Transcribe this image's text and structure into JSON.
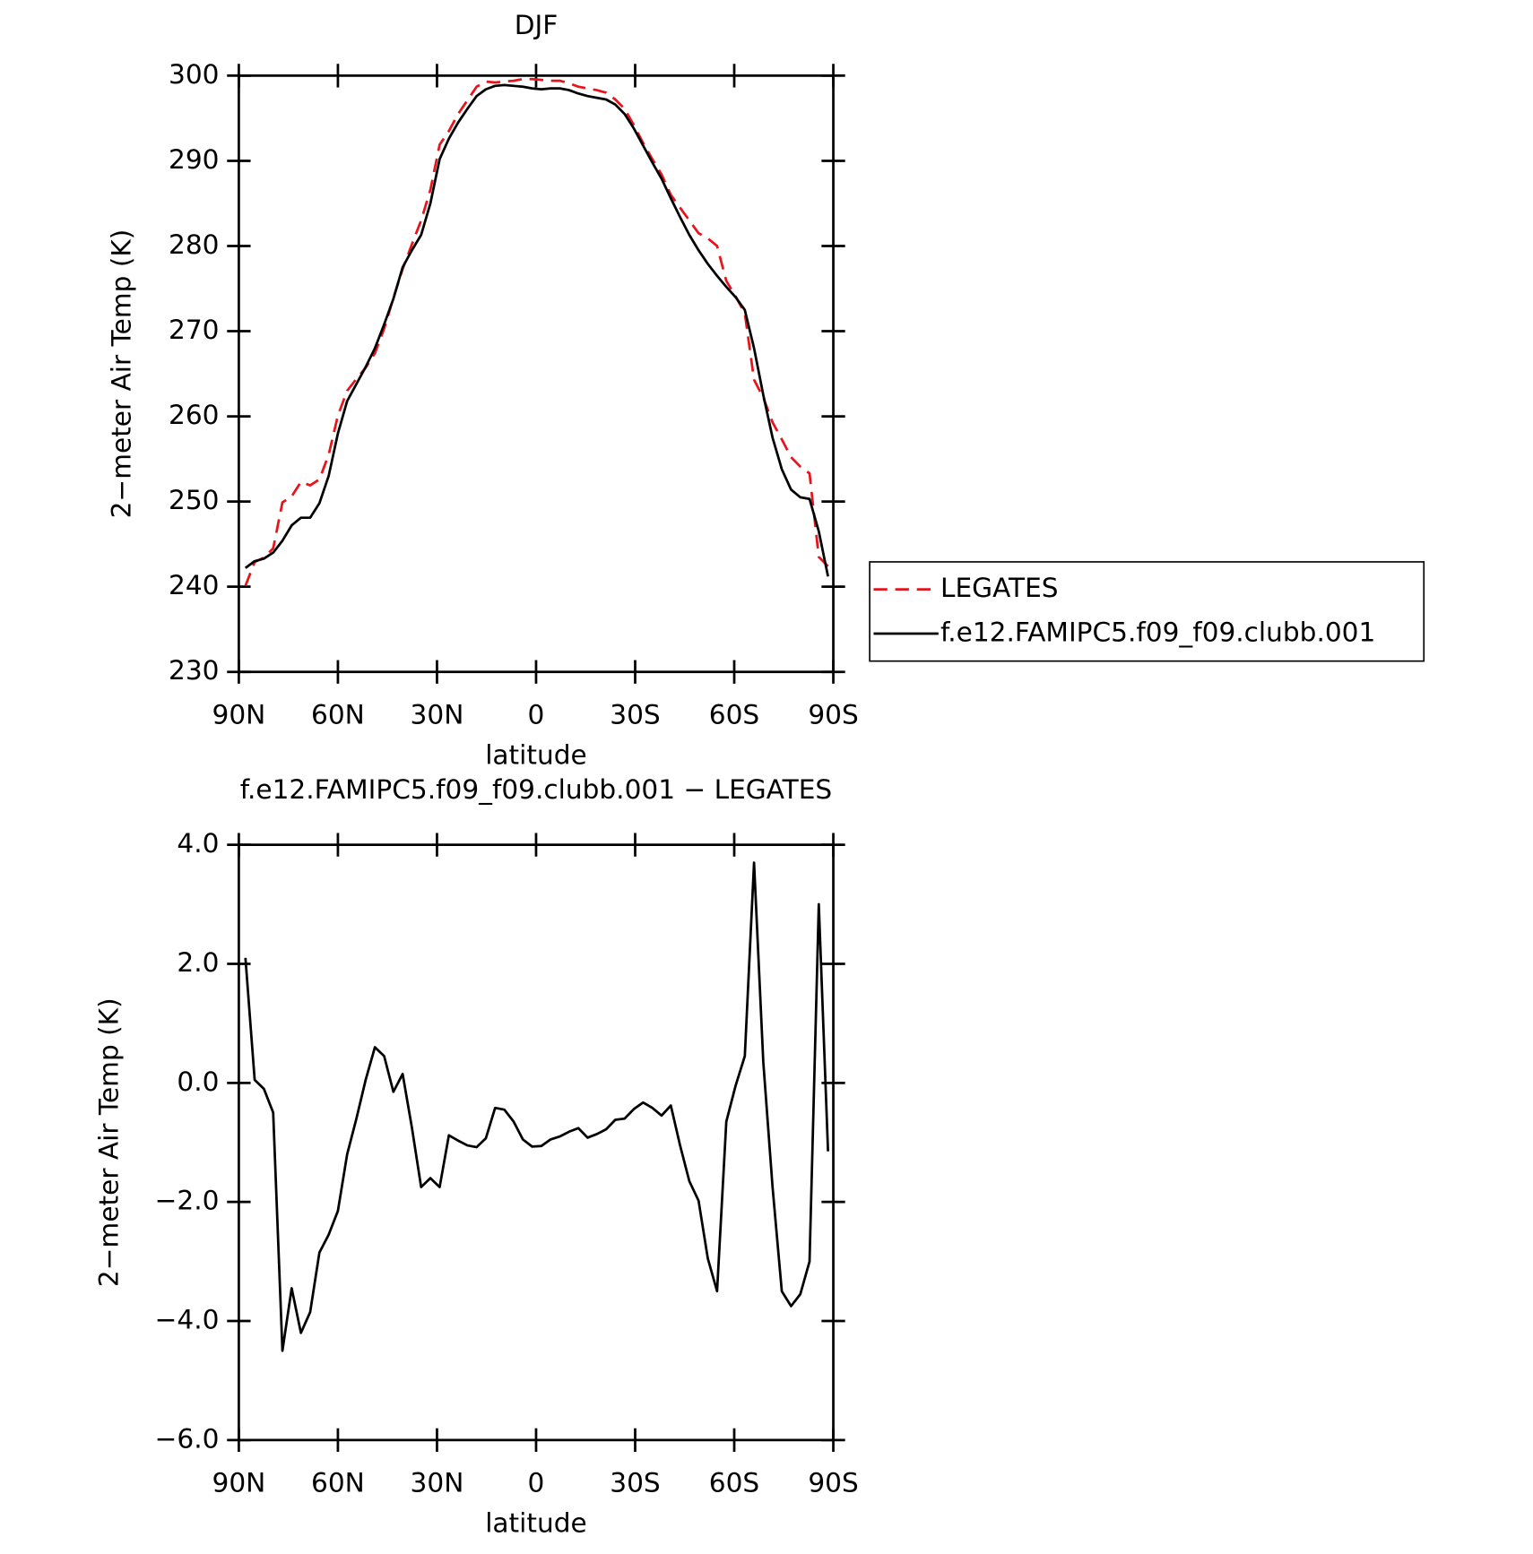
{
  "chart_data": [
    {
      "type": "line",
      "title": "DJF",
      "xlabel": "latitude",
      "ylabel": "2−meter Air Temp (K)",
      "x": [
        88,
        85.2,
        82.4,
        79.6,
        76.8,
        74,
        71.2,
        68.4,
        65.6,
        62.8,
        60,
        57.2,
        54.4,
        51.6,
        48.8,
        46,
        43.2,
        40.4,
        37.6,
        34.8,
        32,
        29.2,
        26.4,
        23.6,
        20.8,
        18,
        15.2,
        12.4,
        9.6,
        6.8,
        4,
        1.2,
        -1.6,
        -4.4,
        -7.2,
        -10,
        -12.8,
        -15.6,
        -18.4,
        -21.2,
        -24,
        -26.8,
        -29.6,
        -32.4,
        -35.2,
        -38,
        -40.8,
        -43.6,
        -46.4,
        -49.2,
        -52,
        -54.8,
        -57.6,
        -60.4,
        -63.2,
        -66,
        -68.8,
        -71.6,
        -74.4,
        -77.2,
        -80,
        -82.8,
        -85.6,
        -88.4
      ],
      "series": [
        {
          "name": "LEGATES",
          "color": "#e8141c",
          "dashed": true,
          "values": [
            240.1,
            242.9,
            243.4,
            244.5,
            249.9,
            250.6,
            252.3,
            251.9,
            252.6,
            255.5,
            260.1,
            263,
            264.4,
            265.7,
            267.4,
            270.3,
            273.9,
            277.3,
            280.2,
            283.0,
            286.6,
            291.9,
            293.5,
            295.5,
            297.1,
            298.7,
            299.3,
            299.2,
            299.3,
            299.4,
            299.6,
            299.6,
            299.5,
            299.4,
            299.4,
            299.1,
            298.7,
            298.5,
            298.3,
            298.0,
            297.2,
            296.1,
            294.2,
            292.1,
            290.2,
            288.4,
            286.0,
            284.5,
            283.0,
            281.5,
            280.9,
            280.0,
            275.9,
            274.1,
            272.1,
            264.3,
            262.2,
            259.3,
            257.3,
            255.2,
            254.1,
            253.3,
            243.5,
            242.4
          ]
        },
        {
          "name": "f.e12.FAMIPC5.f09_f09.clubb.001",
          "color": "#000000",
          "dashed": false,
          "values": [
            242.2,
            243,
            243.3,
            244,
            245.4,
            247.2,
            248.1,
            248.1,
            249.8,
            253,
            258,
            261.8,
            263.8,
            265.8,
            268,
            270.8,
            273.8,
            277.5,
            279.5,
            281.3,
            285,
            290.2,
            292.6,
            294.5,
            296.1,
            297.6,
            298.4,
            298.8,
            298.9,
            298.8,
            298.7,
            298.5,
            298.4,
            298.5,
            298.5,
            298.3,
            297.9,
            297.6,
            297.4,
            297.2,
            296.6,
            295.5,
            293.8,
            291.8,
            289.8,
            287.9,
            285.6,
            283.4,
            281.3,
            279.5,
            277.9,
            276.5,
            275.2,
            274,
            272.5,
            268,
            262.5,
            257.5,
            253.8,
            251.4,
            250.5,
            250.3,
            246.5,
            241.2
          ]
        }
      ],
      "xlim": [
        90,
        -90
      ],
      "xticks": [
        {
          "value": 90,
          "label": "90N"
        },
        {
          "value": 60,
          "label": "60N"
        },
        {
          "value": 30,
          "label": "30N"
        },
        0,
        {
          "value": -30,
          "label": "30S"
        },
        {
          "value": -60,
          "label": "60S"
        },
        {
          "value": -90,
          "label": "90S"
        }
      ],
      "ylim": [
        230,
        300
      ],
      "yticks": [
        230,
        240,
        250,
        260,
        270,
        280,
        290,
        300
      ],
      "legend": "right"
    },
    {
      "type": "line",
      "title": "f.e12.FAMIPC5.f09_f09.clubb.001 − LEGATES",
      "xlabel": "latitude",
      "ylabel": "2−meter Air Temp (K)",
      "x": [
        88,
        85.2,
        82.4,
        79.6,
        76.8,
        74,
        71.2,
        68.4,
        65.6,
        62.8,
        60,
        57.2,
        54.4,
        51.6,
        48.8,
        46,
        43.2,
        40.4,
        37.6,
        34.8,
        32,
        29.2,
        26.4,
        23.6,
        20.8,
        18,
        15.2,
        12.4,
        9.6,
        6.8,
        4,
        1.2,
        -1.6,
        -4.4,
        -7.2,
        -10,
        -12.8,
        -15.6,
        -18.4,
        -21.2,
        -24,
        -26.8,
        -29.6,
        -32.4,
        -35.2,
        -38,
        -40.8,
        -43.6,
        -46.4,
        -49.2,
        -52,
        -54.8,
        -57.6,
        -60.4,
        -63.2,
        -66,
        -68.8,
        -71.6,
        -74.4,
        -77.2,
        -80,
        -82.8,
        -85.6,
        -88.4
      ],
      "color": "#000000",
      "values": [
        2.1,
        0.05,
        -0.1,
        -0.5,
        -4.5,
        -3.45,
        -4.2,
        -3.85,
        -2.85,
        -2.55,
        -2.15,
        -1.2,
        -0.6,
        0.05,
        0.6,
        0.45,
        -0.15,
        0.15,
        -0.75,
        -1.75,
        -1.6,
        -1.75,
        -0.88,
        -0.97,
        -1.05,
        -1.08,
        -0.93,
        -0.42,
        -0.45,
        -0.65,
        -0.95,
        -1.07,
        -1.06,
        -0.95,
        -0.9,
        -0.82,
        -0.76,
        -0.92,
        -0.86,
        -0.78,
        -0.62,
        -0.6,
        -0.44,
        -0.33,
        -0.42,
        -0.55,
        -0.38,
        -1.05,
        -1.65,
        -1.98,
        -2.95,
        -3.5,
        -0.65,
        -0.05,
        0.45,
        3.7,
        0.35,
        -1.75,
        -3.5,
        -3.75,
        -3.55,
        -3.0,
        3.0,
        -1.15
      ],
      "xlim": [
        90,
        -90
      ],
      "xticks": [
        {
          "value": 90,
          "label": "90N"
        },
        {
          "value": 60,
          "label": "60N"
        },
        {
          "value": 30,
          "label": "30N"
        },
        0,
        {
          "value": -30,
          "label": "30S"
        },
        {
          "value": -60,
          "label": "60S"
        },
        {
          "value": -90,
          "label": "90S"
        }
      ],
      "ylim": [
        -6,
        4
      ],
      "yticks": [
        {
          "value": -6,
          "label": "−6.0"
        },
        {
          "value": -4,
          "label": "−4.0"
        },
        {
          "value": -2,
          "label": "−2.0"
        },
        {
          "value": 0,
          "label": "0.0"
        },
        {
          "value": 2,
          "label": "2.0"
        },
        {
          "value": 4,
          "label": "4.0"
        }
      ]
    }
  ]
}
